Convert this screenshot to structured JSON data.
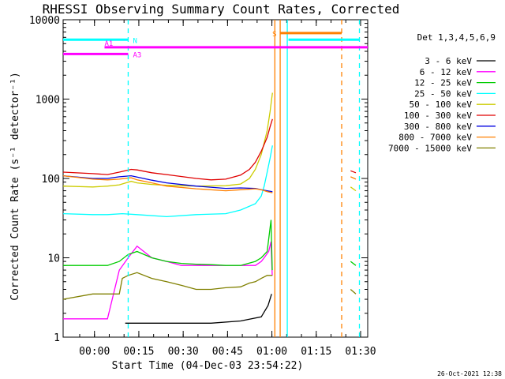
{
  "chart_data": {
    "type": "line",
    "title": "RHESSI Observing Summary Count Rates, Corrected",
    "xlabel": "Start Time (04-Dec-03 23:54:22)",
    "ylabel": "Corrected Count Rate (s⁻¹ detector⁻¹)",
    "ylog": true,
    "ylim": [
      1,
      10000
    ],
    "xlim_minutes": [
      -5,
      98
    ],
    "xticks": [
      {
        "m": 5.6,
        "label": "00:00"
      },
      {
        "m": 20.6,
        "label": "00:15"
      },
      {
        "m": 35.6,
        "label": "00:30"
      },
      {
        "m": 50.6,
        "label": "00:45"
      },
      {
        "m": 65.6,
        "label": "01:00"
      },
      {
        "m": 80.6,
        "label": "01:15"
      },
      {
        "m": 95.6,
        "label": "01:30"
      }
    ],
    "yticks": [
      {
        "v": 1,
        "label": "1"
      },
      {
        "v": 10,
        "label": "10"
      },
      {
        "v": 100,
        "label": "100"
      },
      {
        "v": 1000,
        "label": "1000"
      },
      {
        "v": 10000,
        "label": "10000"
      }
    ],
    "legend": {
      "placement": "right",
      "title": "Det 1,3,4,5,6,9"
    },
    "series": [
      {
        "name": "3 - 6 keV",
        "color": "#000000",
        "x": [
          16,
          25,
          35,
          45,
          55,
          62,
          64.3,
          65.5
        ],
        "y": [
          1.5,
          1.5,
          1.5,
          1.5,
          1.6,
          1.8,
          2.5,
          3.5
        ]
      },
      {
        "name": "6 - 12 keV",
        "color": "#ff00ff",
        "x": [
          -5,
          2,
          10,
          14,
          17,
          20,
          25,
          30,
          35,
          40,
          45,
          50,
          55,
          60,
          62,
          63,
          64.5,
          65.3,
          65.7
        ],
        "y": [
          1.7,
          1.7,
          1.7,
          7,
          10,
          14,
          10,
          9,
          8,
          8,
          8,
          8,
          8,
          8,
          9,
          10,
          12,
          16,
          6
        ]
      },
      {
        "name": "12 - 25 keV",
        "color": "#00cc00",
        "x": [
          -5,
          5,
          10,
          14,
          17,
          20,
          25,
          30,
          35,
          40,
          45,
          50,
          55,
          60,
          62,
          64,
          65.3,
          65.7,
          92.2,
          94
        ],
        "y": [
          8,
          8,
          8,
          9,
          11,
          12,
          10,
          9,
          8.5,
          8.3,
          8.2,
          8,
          8,
          9,
          10,
          12,
          30,
          7,
          9,
          8
        ]
      },
      {
        "name": "25 - 50 keV",
        "color": "#00ffff",
        "x": [
          -5,
          5,
          10,
          15,
          20,
          30,
          40,
          50,
          55,
          60,
          62,
          63,
          64,
          65,
          65.8
        ],
        "y": [
          36,
          35,
          35,
          36,
          35,
          33,
          35,
          36,
          40,
          48,
          60,
          80,
          120,
          180,
          260
        ]
      },
      {
        "name": "50 - 100 keV",
        "color": "#cccc00",
        "x": [
          -5,
          5,
          10,
          14,
          18,
          20,
          25,
          30,
          40,
          50,
          55,
          58,
          60,
          62,
          64,
          65,
          65.8,
          92.2,
          94
        ],
        "y": [
          80,
          78,
          80,
          83,
          92,
          88,
          84,
          82,
          80,
          81,
          85,
          100,
          130,
          200,
          400,
          700,
          1200,
          78,
          70
        ]
      },
      {
        "name": "100 - 300 keV",
        "color": "#e00000",
        "x": [
          -5,
          5,
          10,
          14,
          18,
          20,
          25,
          30,
          40,
          45,
          50,
          55,
          58,
          60,
          62,
          64,
          65,
          65.8,
          92.2,
          94
        ],
        "y": [
          120,
          115,
          112,
          120,
          130,
          128,
          118,
          112,
          100,
          96,
          98,
          110,
          130,
          160,
          220,
          330,
          450,
          560,
          125,
          118
        ]
      },
      {
        "name": "300 - 800 keV",
        "color": "#0000e0",
        "x": [
          -5,
          5,
          10,
          14,
          18,
          20,
          25,
          30,
          40,
          50,
          55,
          60,
          62,
          64,
          65.8
        ],
        "y": [
          108,
          100,
          100,
          105,
          108,
          104,
          95,
          88,
          80,
          75,
          76,
          75,
          72,
          70,
          68
        ]
      },
      {
        "name": "800 - 7000 keV",
        "color": "#ff8000",
        "x": [
          -5,
          5,
          10,
          14,
          18,
          20,
          25,
          30,
          40,
          50,
          55,
          60,
          62,
          64,
          65.8,
          92.2,
          94
        ],
        "y": [
          108,
          98,
          96,
          98,
          102,
          96,
          88,
          80,
          74,
          70,
          72,
          74,
          72,
          68,
          66,
          105,
          98
        ]
      },
      {
        "name": "7000 - 15000 keV",
        "color": "#808000",
        "x": [
          -5,
          5,
          10,
          14,
          15,
          17,
          20,
          25,
          30,
          35,
          40,
          45,
          50,
          55,
          58,
          60,
          62,
          64,
          65.8,
          92.2,
          94
        ],
        "y": [
          3,
          3.5,
          3.5,
          3.5,
          5.5,
          6,
          6.5,
          5.5,
          5,
          4.5,
          4,
          4,
          4.2,
          4.3,
          4.8,
          5,
          5.5,
          6,
          6,
          4,
          3.5
        ]
      }
    ],
    "vlines": [
      {
        "m": 66.6,
        "color": "#ff8000",
        "style": "solid"
      },
      {
        "m": 68.4,
        "color": "#ff8000",
        "style": "solid"
      },
      {
        "m": 70.8,
        "color": "#00ffff",
        "style": "solid"
      },
      {
        "m": 17,
        "color": "#00ffff",
        "style": "dashed"
      },
      {
        "m": 89.2,
        "color": "#ff8000",
        "style": "dashed"
      },
      {
        "m": 95.2,
        "color": "#00ffff",
        "style": "dashed"
      }
    ],
    "flag_bars": [
      {
        "label": "N",
        "color": "#00ffff",
        "x0": -5,
        "x1": 17,
        "y": 5600
      },
      {
        "label": "",
        "color": "#00ffff",
        "x0": 71.2,
        "x1": 95.2,
        "y": 5600
      },
      {
        "label": "A1",
        "color": "#ff00ff",
        "x0": 9,
        "x1": 98,
        "y": 4500
      },
      {
        "label": "A3",
        "color": "#ff00ff",
        "x0": -5,
        "x1": 17,
        "y": 3700
      },
      {
        "label": "S",
        "color": "#ff8000",
        "x0": 68.4,
        "x1": 89.2,
        "y": 6800
      }
    ],
    "timestamp": "26-Oct-2021 12:38"
  }
}
